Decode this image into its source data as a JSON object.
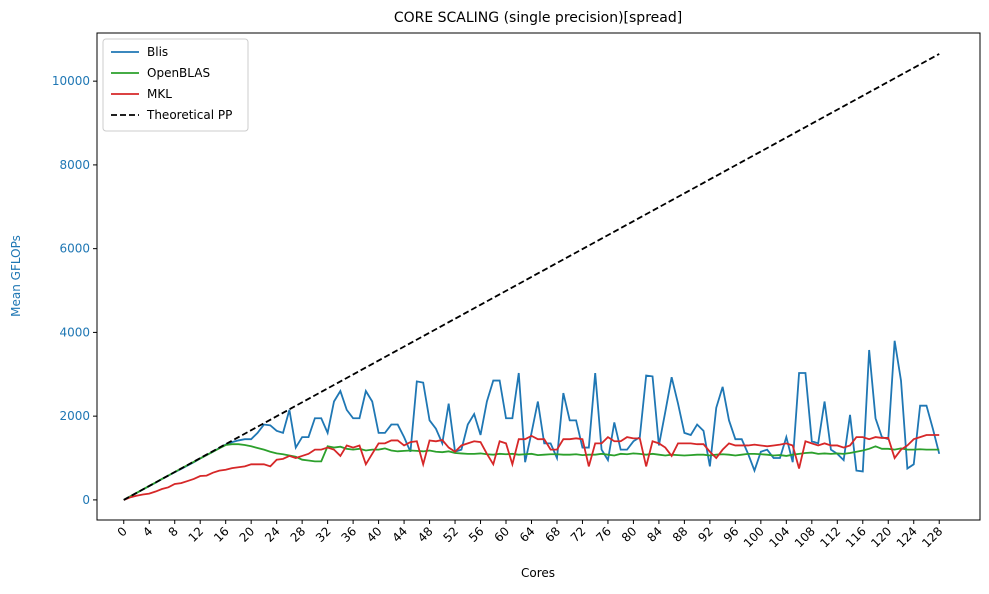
{
  "chart_data": {
    "type": "line",
    "title": "CORE SCALING (single precision)[spread]",
    "xlabel": "Cores",
    "ylabel": "Mean GFLOPs",
    "ylabel_color": "#1f77b4",
    "x": [
      0,
      1,
      2,
      3,
      4,
      5,
      6,
      7,
      8,
      9,
      10,
      11,
      12,
      13,
      14,
      15,
      16,
      17,
      18,
      19,
      20,
      21,
      22,
      23,
      24,
      25,
      26,
      27,
      28,
      29,
      30,
      31,
      32,
      33,
      34,
      35,
      36,
      37,
      38,
      39,
      40,
      41,
      42,
      43,
      44,
      45,
      46,
      47,
      48,
      49,
      50,
      51,
      52,
      53,
      54,
      55,
      56,
      57,
      58,
      59,
      60,
      61,
      62,
      63,
      64,
      65,
      66,
      67,
      68,
      69,
      70,
      71,
      72,
      73,
      74,
      75,
      76,
      77,
      78,
      79,
      80,
      81,
      82,
      83,
      84,
      85,
      86,
      87,
      88,
      89,
      90,
      91,
      92,
      93,
      94,
      95,
      96,
      97,
      98,
      99,
      100,
      101,
      102,
      103,
      104,
      105,
      106,
      107,
      108,
      109,
      110,
      111,
      112,
      113,
      114,
      115,
      116,
      117,
      118,
      119,
      120,
      121,
      122,
      123,
      124,
      125,
      126,
      127,
      128
    ],
    "series": [
      {
        "name": "Blis",
        "color": "#1f77b4",
        "linestyle": "solid",
        "values": [
          0,
          80,
          165,
          250,
          330,
          410,
          500,
          580,
          660,
          740,
          820,
          900,
          990,
          1070,
          1150,
          1240,
          1320,
          1380,
          1420,
          1450,
          1450,
          1600,
          1800,
          1780,
          1650,
          1600,
          2150,
          1250,
          1500,
          1500,
          1950,
          1950,
          1600,
          2350,
          2600,
          2150,
          1950,
          1950,
          2600,
          2350,
          1600,
          1600,
          1800,
          1800,
          1500,
          1150,
          2830,
          2800,
          1900,
          1700,
          1350,
          2300,
          1150,
          1200,
          1800,
          2050,
          1550,
          2350,
          2850,
          2850,
          1950,
          1950,
          3030,
          900,
          1600,
          2350,
          1350,
          1350,
          1000,
          2550,
          1900,
          1900,
          1250,
          1250,
          3030,
          1200,
          950,
          1850,
          1200,
          1200,
          1400,
          1500,
          2970,
          2950,
          1300,
          2100,
          2930,
          2300,
          1600,
          1550,
          1800,
          1650,
          800,
          2200,
          2700,
          1900,
          1450,
          1450,
          1100,
          700,
          1150,
          1200,
          1000,
          1000,
          1500,
          900,
          3030,
          3030,
          1400,
          1350,
          2350,
          1200,
          1100,
          950,
          2030,
          700,
          680,
          3580,
          1950,
          1500,
          1450,
          3800,
          2850,
          750,
          850,
          2250,
          2250,
          1700,
          1100
        ]
      },
      {
        "name": "OpenBLAS",
        "color": "#2ca02c",
        "linestyle": "solid",
        "values": [
          0,
          83,
          166,
          250,
          333,
          416,
          500,
          583,
          666,
          750,
          830,
          910,
          990,
          1070,
          1150,
          1230,
          1310,
          1330,
          1330,
          1310,
          1280,
          1240,
          1200,
          1150,
          1110,
          1090,
          1060,
          1030,
          960,
          940,
          920,
          920,
          1280,
          1250,
          1270,
          1220,
          1200,
          1220,
          1180,
          1200,
          1200,
          1230,
          1180,
          1160,
          1170,
          1180,
          1170,
          1160,
          1180,
          1150,
          1140,
          1160,
          1120,
          1110,
          1100,
          1100,
          1110,
          1090,
          1080,
          1100,
          1090,
          1100,
          1080,
          1090,
          1100,
          1070,
          1080,
          1090,
          1090,
          1080,
          1080,
          1090,
          1070,
          1080,
          1080,
          1100,
          1080,
          1060,
          1100,
          1090,
          1110,
          1100,
          1080,
          1100,
          1080,
          1060,
          1080,
          1070,
          1060,
          1070,
          1080,
          1080,
          1060,
          1080,
          1090,
          1080,
          1060,
          1080,
          1100,
          1100,
          1090,
          1080,
          1060,
          1070,
          1050,
          1080,
          1100,
          1120,
          1130,
          1100,
          1110,
          1100,
          1110,
          1100,
          1120,
          1150,
          1180,
          1220,
          1280,
          1220,
          1220,
          1200,
          1230,
          1200,
          1200,
          1210,
          1200,
          1200,
          1200
        ]
      },
      {
        "name": "MKL",
        "color": "#d62728",
        "linestyle": "solid",
        "values": [
          0,
          60,
          100,
          130,
          150,
          200,
          260,
          300,
          380,
          400,
          450,
          500,
          570,
          580,
          650,
          700,
          720,
          760,
          780,
          800,
          850,
          850,
          850,
          800,
          960,
          980,
          1050,
          1000,
          1050,
          1100,
          1200,
          1200,
          1250,
          1200,
          1050,
          1300,
          1250,
          1300,
          850,
          1100,
          1350,
          1350,
          1420,
          1420,
          1300,
          1380,
          1400,
          850,
          1420,
          1400,
          1430,
          1250,
          1150,
          1300,
          1350,
          1400,
          1380,
          1100,
          850,
          1400,
          1350,
          850,
          1450,
          1450,
          1530,
          1450,
          1450,
          1200,
          1200,
          1450,
          1450,
          1470,
          1450,
          800,
          1350,
          1350,
          1500,
          1400,
          1400,
          1500,
          1470,
          1470,
          800,
          1400,
          1350,
          1250,
          1050,
          1350,
          1350,
          1350,
          1330,
          1330,
          1150,
          1000,
          1200,
          1350,
          1300,
          1300,
          1300,
          1320,
          1300,
          1280,
          1300,
          1320,
          1350,
          1300,
          750,
          1400,
          1350,
          1300,
          1350,
          1300,
          1300,
          1250,
          1300,
          1500,
          1500,
          1450,
          1500,
          1480,
          1480,
          1000,
          1200,
          1300,
          1450,
          1500,
          1550,
          1550,
          1550
        ]
      },
      {
        "name": "Theoretical PP",
        "color": "#000000",
        "linestyle": "dashed",
        "x": [
          0,
          128
        ],
        "values": [
          0,
          10650
        ]
      }
    ],
    "xlim": [
      -4.2,
      134.4
    ],
    "ylim": [
      -480,
      11150
    ],
    "xticks": [
      0,
      4,
      8,
      12,
      16,
      20,
      24,
      28,
      32,
      36,
      40,
      44,
      48,
      52,
      56,
      60,
      64,
      68,
      72,
      76,
      80,
      84,
      88,
      92,
      96,
      100,
      104,
      108,
      112,
      116,
      120,
      124,
      128
    ],
    "yticks": [
      0,
      2000,
      4000,
      6000,
      8000,
      10000
    ],
    "legend": "upper left",
    "grid": false
  }
}
